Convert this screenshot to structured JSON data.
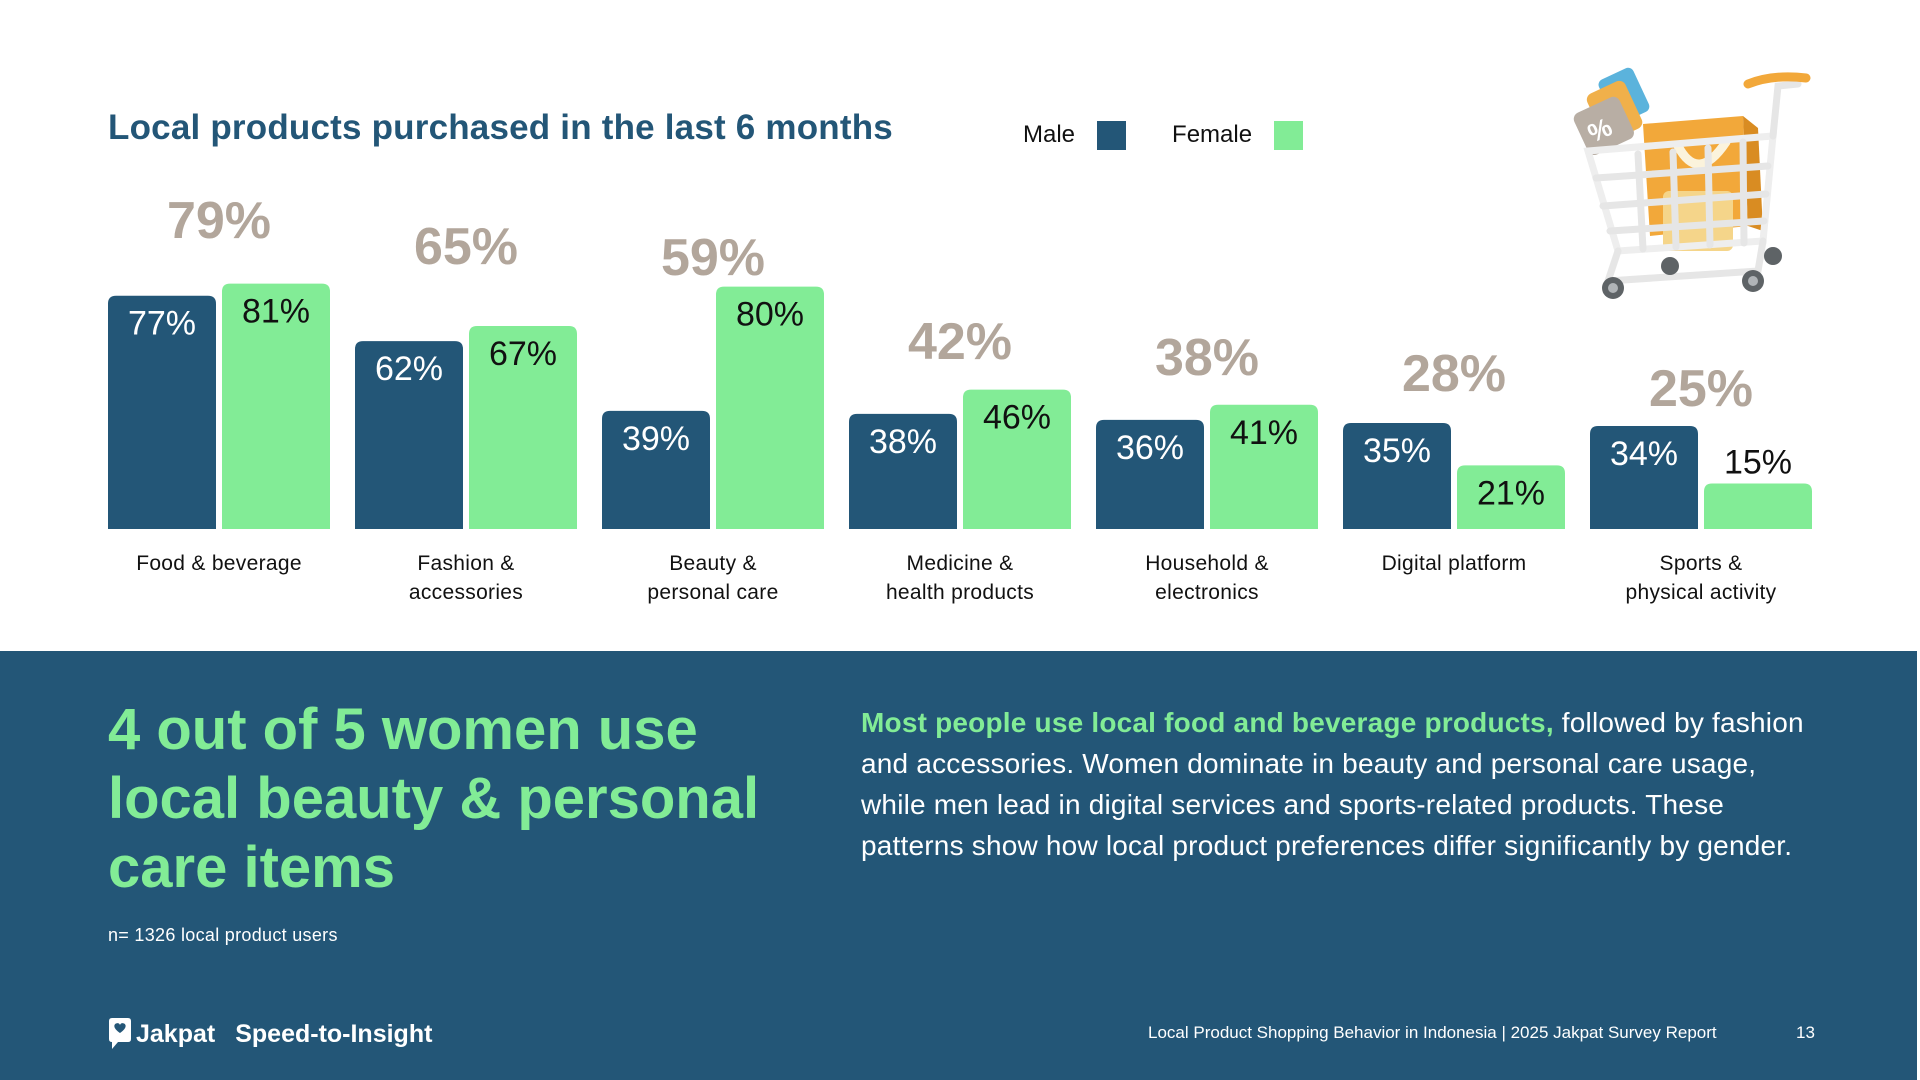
{
  "header": {
    "title": "Local products purchased in the last 6 months"
  },
  "legend": [
    {
      "label": "Male",
      "color": "#235677"
    },
    {
      "label": "Female",
      "color": "#82ec96"
    }
  ],
  "illustration": {
    "icon": "shopping-cart-icon"
  },
  "chart_data": {
    "type": "bar",
    "title": "Local products purchased in the last 6 months",
    "xlabel": "",
    "ylabel": "",
    "ylim": [
      0,
      100
    ],
    "grid": false,
    "legend_position": "top",
    "categories": [
      [
        "Food & beverage"
      ],
      [
        "Fashion &",
        "accessories"
      ],
      [
        "Beauty &",
        "personal care"
      ],
      [
        "Medicine &",
        "health products"
      ],
      [
        "Household &",
        "electronics"
      ],
      [
        "Digital platform"
      ],
      [
        "Sports &",
        "physical activity"
      ]
    ],
    "totals": [
      79,
      65,
      59,
      42,
      38,
      28,
      25
    ],
    "total_labels": [
      "79%",
      "65%",
      "59%",
      "42%",
      "38%",
      "28%",
      "25%"
    ],
    "series": [
      {
        "name": "Male",
        "color": "#235677",
        "label_color": "#ffffff",
        "values": [
          77,
          62,
          39,
          38,
          36,
          35,
          34
        ],
        "labels": [
          "77%",
          "62%",
          "39%",
          "38%",
          "36%",
          "35%",
          "34%"
        ]
      },
      {
        "name": "Female",
        "color": "#82ec96",
        "label_color": "#111111",
        "values": [
          81,
          67,
          80,
          46,
          41,
          21,
          15
        ],
        "labels": [
          "81%",
          "67%",
          "80%",
          "46%",
          "41%",
          "21%",
          "15%"
        ]
      }
    ],
    "total_label_color": "#b2a69b"
  },
  "insight": {
    "headline": "4 out of 5 women use local beauty & personal care items",
    "sample_note": "n= 1326 local product users",
    "summary_lead": "Most people use local food and beverage products,",
    "summary_rest": " followed by fashion and accessories. Women dominate in beauty and personal care usage, while men lead in digital services and sports-related products. These patterns show how local product preferences differ significantly by gender."
  },
  "footer": {
    "brand_name": "Jakpat",
    "brand_logo": "jakpat-logo-icon",
    "tagline": "Speed-to-Insight",
    "report_title": "Local Product Shopping Behavior in Indonesia | 2025 Jakpat Survey Report",
    "page_number": "13"
  }
}
